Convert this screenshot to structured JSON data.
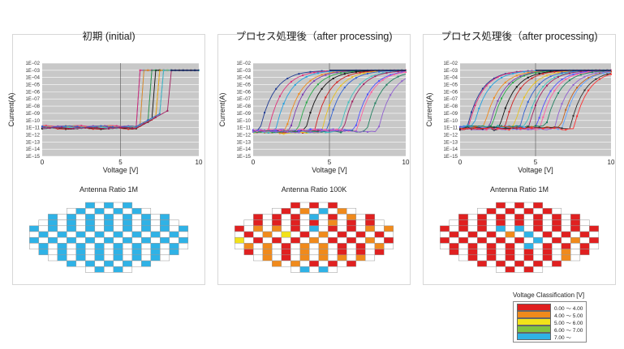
{
  "panels": [
    {
      "title": "初期 (initial)",
      "wafer_title": "Antenna Ratio 1M",
      "state": "initial"
    },
    {
      "title": "プロセス処理後（after processing)",
      "wafer_title": "Antenna Ratio 100K",
      "state": "processed"
    },
    {
      "title": "プロセス処理後（after processing)",
      "wafer_title": "Antenna Ratio 1M",
      "state": "processed"
    }
  ],
  "chart_data": [
    {
      "type": "line",
      "title": "初期 (initial)",
      "xlabel": "Voltage [V]",
      "ylabel": "Current(A)",
      "xlim": [
        0,
        10
      ],
      "ylim": [
        1e-15,
        0.01
      ],
      "yscale": "log",
      "x_ticks": [
        "0",
        "5",
        "10"
      ],
      "y_ticks": [
        "1E−15",
        "1E−14",
        "1E−13",
        "1E−12",
        "1E−11",
        "1E−10",
        "1E−09",
        "1E−08",
        "1E−07",
        "1E−06",
        "1E−05",
        "1E−04",
        "1E−03",
        "1E−02"
      ],
      "series_summary": {
        "count": 12,
        "leakage_level": 1e-11,
        "turn_on_voltage_range": [
          6.2,
          8.2
        ],
        "saturation": 0.001
      }
    },
    {
      "type": "line",
      "title": "プロセス処理後（after processing)",
      "xlabel": "Voltage [V]",
      "ylabel": "Current(A)",
      "xlim": [
        0,
        10
      ],
      "ylim": [
        1e-15,
        0.01
      ],
      "yscale": "log",
      "x_ticks": [
        "0",
        "5",
        "10"
      ],
      "y_ticks": [
        "1E−15",
        "1E−14",
        "1E−13",
        "1E−12",
        "1E−11",
        "1E−10",
        "1E−09",
        "1E−08",
        "1E−07",
        "1E−06",
        "1E−05",
        "1E−04",
        "1E−03",
        "1E−02"
      ],
      "series_summary": {
        "count": 16,
        "leakage_level": 3e-12,
        "turn_on_voltage_range": [
          0.5,
          8.0
        ],
        "saturation": 0.001
      }
    },
    {
      "type": "line",
      "title": "プロセス処理後（after processing)",
      "xlabel": "Voltage [V]",
      "ylabel": "Current(A)",
      "xlim": [
        0,
        10
      ],
      "ylim": [
        1e-15,
        0.01
      ],
      "yscale": "log",
      "x_ticks": [
        "0",
        "5",
        "10"
      ],
      "y_ticks": [
        "1E−15",
        "1E−14",
        "1E−13",
        "1E−12",
        "1E−11",
        "1E−10",
        "1E−09",
        "1E−08",
        "1E−07",
        "1E−06",
        "1E−05",
        "1E−04",
        "1E−03",
        "1E−02"
      ],
      "series_summary": {
        "count": 20,
        "leakage_level": 1e-11,
        "turn_on_voltage_range": [
          0.3,
          7.7
        ],
        "saturation": 0.001
      }
    }
  ],
  "wafer_rows": [
    5,
    9,
    13,
    15,
    17,
    17,
    17,
    17,
    15,
    13,
    9,
    5
  ],
  "legend": {
    "title": "Voltage Classification [V]",
    "items": [
      {
        "label": "0.00 〜 4.00",
        "color": "#e02020"
      },
      {
        "label": "4.00 〜 5.00",
        "color": "#f08a1c"
      },
      {
        "label": "5.00 〜 6.00",
        "color": "#f2e21a"
      },
      {
        "label": "6.00 〜 7.00",
        "color": "#7fc241"
      },
      {
        "label": "7.00 〜",
        "color": "#2fb2e6"
      }
    ]
  },
  "colors": {
    "plot_bg": "#c8c8c8",
    "grid": "#ffffff",
    "panel_border": "#d7d7d7"
  }
}
